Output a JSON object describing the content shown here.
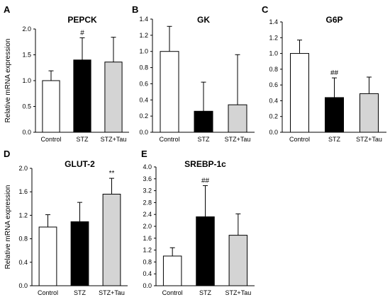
{
  "chart_data": [
    {
      "type": "bar",
      "panel_label": "A",
      "title": "PEPCK",
      "ylabel": "Relative mRNA expression",
      "categories": [
        "Control",
        "STZ",
        "STZ+Tau"
      ],
      "values": [
        1.0,
        1.4,
        1.36
      ],
      "errors": [
        0.19,
        0.43,
        0.48
      ],
      "annotations": [
        "",
        "#",
        ""
      ],
      "ylim": [
        0,
        2.0
      ],
      "yticks": [
        "0.0",
        "0.5",
        "1.0",
        "1.5",
        "2.0"
      ],
      "bar_colors": [
        "#ffffff",
        "#000000",
        "#d4d4d4"
      ],
      "grid": false
    },
    {
      "type": "bar",
      "panel_label": "B",
      "title": "GK",
      "ylabel": "",
      "categories": [
        "Control",
        "STZ",
        "STZ+Tau"
      ],
      "values": [
        1.0,
        0.26,
        0.34
      ],
      "errors": [
        0.31,
        0.36,
        0.62
      ],
      "annotations": [
        "",
        "",
        ""
      ],
      "ylim": [
        0,
        1.4
      ],
      "yticks": [
        "0.0",
        "0.2",
        "0.4",
        "0.6",
        "0.8",
        "1.0",
        "1.2",
        "1.4"
      ],
      "bar_colors": [
        "#ffffff",
        "#000000",
        "#d4d4d4"
      ],
      "grid": false
    },
    {
      "type": "bar",
      "panel_label": "C",
      "title": "G6P",
      "ylabel": "",
      "categories": [
        "Control",
        "STZ",
        "STZ+Tau"
      ],
      "values": [
        1.0,
        0.44,
        0.49
      ],
      "errors": [
        0.17,
        0.25,
        0.21
      ],
      "annotations": [
        "",
        "##",
        ""
      ],
      "ylim": [
        0,
        1.4
      ],
      "yticks": [
        "0.0",
        "0.2",
        "0.4",
        "0.6",
        "0.8",
        "1.0",
        "1.2",
        "1.4"
      ],
      "bar_colors": [
        "#ffffff",
        "#000000",
        "#d4d4d4"
      ],
      "grid": false
    },
    {
      "type": "bar",
      "panel_label": "D",
      "title": "GLUT-2",
      "ylabel": "Relative mRNA expression",
      "categories": [
        "Control",
        "STZ",
        "STZ+Tau"
      ],
      "values": [
        1.0,
        1.09,
        1.56
      ],
      "errors": [
        0.21,
        0.33,
        0.27
      ],
      "annotations": [
        "",
        "",
        "**"
      ],
      "ylim": [
        0,
        2.0
      ],
      "yticks": [
        "0.0",
        "0.4",
        "0.8",
        "1.2",
        "1.6",
        "2.0"
      ],
      "bar_colors": [
        "#ffffff",
        "#000000",
        "#d4d4d4"
      ],
      "grid": false
    },
    {
      "type": "bar",
      "panel_label": "E",
      "title": "SREBP-1c",
      "ylabel": "",
      "categories": [
        "Control",
        "STZ",
        "STZ+Tau"
      ],
      "values": [
        1.0,
        2.32,
        1.7
      ],
      "errors": [
        0.28,
        1.05,
        0.72
      ],
      "annotations": [
        "",
        "##",
        ""
      ],
      "ylim": [
        0,
        4.0
      ],
      "yticks": [
        "0.0",
        "0.4",
        "0.8",
        "1.2",
        "1.6",
        "2.0",
        "2.4",
        "2.8",
        "3.2",
        "3.6",
        "4.0"
      ],
      "bar_colors": [
        "#ffffff",
        "#000000",
        "#d4d4d4"
      ],
      "grid": false
    }
  ]
}
